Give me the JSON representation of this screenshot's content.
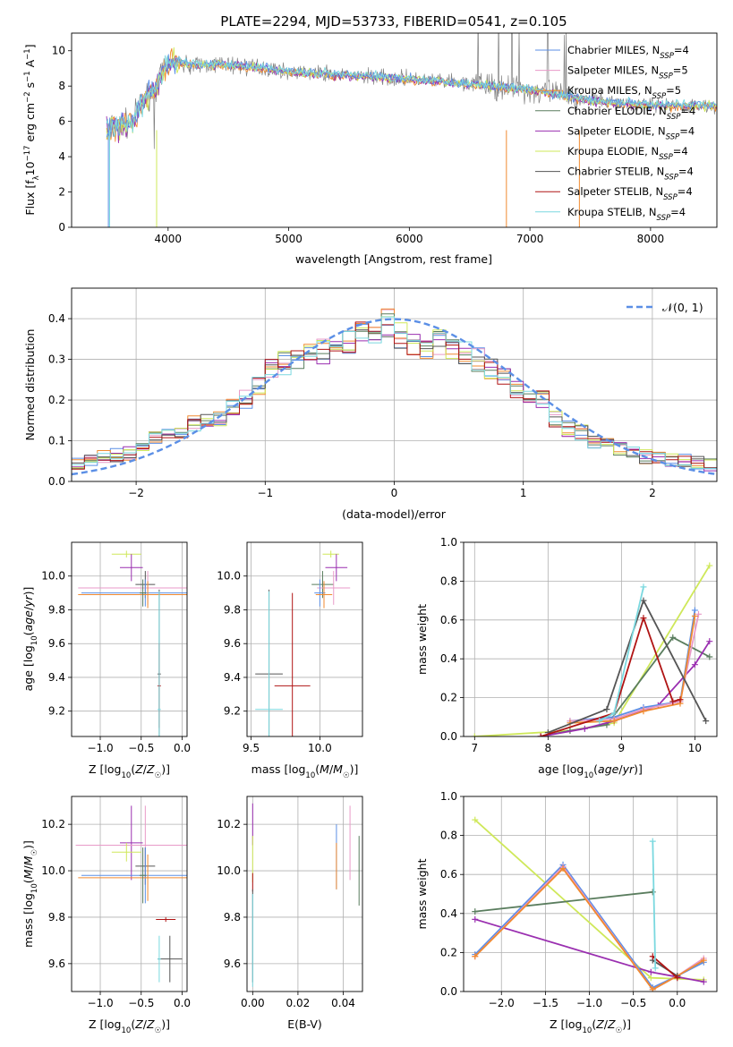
{
  "figure_title": "PLATE=2294, MJD=53733, FIBERID=0541, z=0.105",
  "colors": {
    "chabrier_miles": "#5b8fe6",
    "salpeter_miles": "#e89ac8",
    "kroupa_miles": "#f08a30",
    "chabrier_elodie": "#5a7d5e",
    "salpeter_elodie": "#9a2fb0",
    "kroupa_elodie": "#cfe85a",
    "chabrier_stelib": "#555555",
    "salpeter_stelib": "#b01414",
    "kroupa_stelib": "#7ad8df",
    "normal": "#5b8fe6"
  },
  "chart_data": [
    {
      "id": "spectrum",
      "type": "line",
      "title": "PLATE=2294, MJD=53733, FIBERID=0541, z=0.105",
      "xlabel": "wavelength [Angstrom, rest frame]",
      "ylabel": "Flux [f_λ 10^-17 erg cm^-2 s^-1 A^-1]",
      "xlim": [
        3200,
        8550
      ],
      "ylim": [
        0,
        11
      ],
      "xticks": [
        4000,
        5000,
        6000,
        7000,
        8000
      ],
      "yticks": [
        0,
        2,
        4,
        6,
        8,
        10
      ],
      "legend_position": "upper-right",
      "legend": [
        {
          "label": "Chabrier MILES, N",
          "sub": "SSP",
          "eq": "=4",
          "color": "chabrier_miles"
        },
        {
          "label": "Salpeter MILES, N",
          "sub": "SSP",
          "eq": "=5",
          "color": "salpeter_miles"
        },
        {
          "label": "Kroupa MILES, N",
          "sub": "SSP",
          "eq": "=5",
          "color": "kroupa_miles"
        },
        {
          "label": "Chabrier ELODIE, N",
          "sub": "SSP",
          "eq": "=4",
          "color": "chabrier_elodie"
        },
        {
          "label": "Salpeter ELODIE, N",
          "sub": "SSP",
          "eq": "=4",
          "color": "salpeter_elodie"
        },
        {
          "label": "Kroupa ELODIE, N",
          "sub": "SSP",
          "eq": "=4",
          "color": "kroupa_elodie"
        },
        {
          "label": "Chabrier STELIB, N",
          "sub": "SSP",
          "eq": "=4",
          "color": "chabrier_stelib"
        },
        {
          "label": "Salpeter STELIB, N",
          "sub": "SSP",
          "eq": "=4",
          "color": "salpeter_stelib"
        },
        {
          "label": "Kroupa STELIB, N",
          "sub": "SSP",
          "eq": "=4",
          "color": "kroupa_stelib"
        }
      ],
      "continuum": {
        "wavelength": [
          3500,
          3700,
          3800,
          3900,
          4000,
          4200,
          4500,
          4800,
          5000,
          5500,
          6000,
          6500,
          7000,
          7500,
          8000,
          8500
        ],
        "flux": [
          5.6,
          6.0,
          7.2,
          8.0,
          9.4,
          9.2,
          9.2,
          9.0,
          8.8,
          8.6,
          8.4,
          8.1,
          7.8,
          7.2,
          6.9,
          6.9
        ]
      }
    },
    {
      "id": "residuals",
      "type": "step",
      "xlabel": "(data-model)/error",
      "ylabel": "Normed distribution",
      "xlim": [
        -2.5,
        2.5
      ],
      "ylim": [
        0,
        0.475
      ],
      "xticks": [
        -2,
        -1,
        0,
        1,
        2
      ],
      "yticks": [
        0.0,
        0.1,
        0.2,
        0.3,
        0.4
      ],
      "legend_position": "upper-right",
      "legend_label": "𝒩(0, 1)",
      "bin_width": 0.1,
      "bin_start": -2.5,
      "hist_mean": [
        0.04,
        0.05,
        0.06,
        0.065,
        0.07,
        0.075,
        0.11,
        0.115,
        0.12,
        0.14,
        0.15,
        0.16,
        0.18,
        0.2,
        0.23,
        0.28,
        0.29,
        0.3,
        0.31,
        0.32,
        0.33,
        0.34,
        0.36,
        0.37,
        0.39,
        0.36,
        0.34,
        0.33,
        0.34,
        0.33,
        0.32,
        0.3,
        0.28,
        0.25,
        0.23,
        0.21,
        0.2,
        0.15,
        0.13,
        0.12,
        0.1,
        0.09,
        0.08,
        0.075,
        0.06,
        0.055,
        0.055,
        0.05,
        0.045,
        0.04
      ],
      "normal": {
        "mean": 0,
        "sigma": 1
      }
    },
    {
      "id": "age_vs_Z",
      "type": "errorbar",
      "xlabel": "Z [log10(Z/Z☉)]",
      "ylabel": "age [log10(age/yr)]",
      "xlim": [
        -1.35,
        0.06
      ],
      "ylim": [
        9.05,
        10.2
      ],
      "xticks": [
        -1.0,
        -0.5,
        0.0
      ],
      "yticks": [
        9.2,
        9.4,
        9.6,
        9.8,
        10.0
      ],
      "points": [
        {
          "s": "kroupa_elodie",
          "x": -0.68,
          "xerr": 0.18,
          "y": 10.13,
          "yerr": 0.02
        },
        {
          "s": "salpeter_elodie",
          "x": -0.62,
          "xerr": 0.14,
          "y": 10.05,
          "yerr": 0.08
        },
        {
          "s": "chabrier_stelib",
          "x": -0.45,
          "xerr": 0.12,
          "y": 9.95,
          "yerr": 0.08
        },
        {
          "s": "salpeter_miles",
          "x": -0.42,
          "xerr": 0.85,
          "y": 9.93,
          "yerr": 0.1
        },
        {
          "s": "chabrier_miles",
          "x": -0.45,
          "xerr": 0.78,
          "y": 9.9,
          "yerr": 0.08
        },
        {
          "s": "kroupa_miles",
          "x": -0.42,
          "xerr": 0.85,
          "y": 9.89,
          "yerr": 0.08
        },
        {
          "s": "chabrier_elodie",
          "x": -0.48,
          "xerr": 0.04,
          "y": 9.9,
          "yerr": 0.08
        },
        {
          "s": "chabrier_stelib",
          "x": -0.28,
          "xerr": 0.02,
          "y": 9.42,
          "yerr": 0.5
        },
        {
          "s": "salpeter_stelib",
          "x": -0.28,
          "xerr": 0.02,
          "y": 9.35,
          "yerr": 0.25
        },
        {
          "s": "kroupa_stelib",
          "x": -0.28,
          "xerr": 0.02,
          "y": 9.21,
          "yerr": 0.7
        }
      ]
    },
    {
      "id": "age_vs_mass",
      "type": "errorbar",
      "xlabel": "mass [log10(M/M☉)]",
      "ylabel": "",
      "xlim": [
        9.47,
        10.31
      ],
      "ylim": [
        9.05,
        10.2
      ],
      "xticks": [
        9.5,
        10.0
      ],
      "yticks": [
        9.2,
        9.4,
        9.6,
        9.8,
        10.0
      ],
      "points": [
        {
          "s": "kroupa_elodie",
          "x": 10.08,
          "xerr": 0.06,
          "y": 10.13,
          "yerr": 0.02
        },
        {
          "s": "salpeter_elodie",
          "x": 10.12,
          "xerr": 0.08,
          "y": 10.05,
          "yerr": 0.08
        },
        {
          "s": "chabrier_elodie",
          "x": 10.02,
          "xerr": 0.08,
          "y": 9.95,
          "yerr": 0.08
        },
        {
          "s": "salpeter_miles",
          "x": 10.1,
          "xerr": 0.12,
          "y": 9.93,
          "yerr": 0.1
        },
        {
          "s": "chabrier_miles",
          "x": 10.0,
          "xerr": 0.04,
          "y": 9.9,
          "yerr": 0.08
        },
        {
          "s": "kroupa_miles",
          "x": 10.03,
          "xerr": 0.06,
          "y": 9.89,
          "yerr": 0.08
        },
        {
          "s": "chabrier_stelib",
          "x": 9.63,
          "xerr": 0.1,
          "y": 9.42,
          "yerr": 0.5
        },
        {
          "s": "salpeter_stelib",
          "x": 9.8,
          "xerr": 0.13,
          "y": 9.35,
          "yerr": 0.55
        },
        {
          "s": "kroupa_stelib",
          "x": 9.63,
          "xerr": 0.1,
          "y": 9.21,
          "yerr": 0.7
        }
      ]
    },
    {
      "id": "mass_weight_vs_age",
      "type": "line",
      "xlabel": "age [log10(age/yr)]",
      "ylabel": "mass weight",
      "xlim": [
        6.85,
        10.3
      ],
      "ylim": [
        0,
        1
      ],
      "xticks": [
        7,
        8,
        9,
        10
      ],
      "yticks": [
        0.0,
        0.2,
        0.4,
        0.6,
        0.8,
        1.0
      ],
      "series": [
        {
          "s": "kroupa_elodie",
          "x": [
            7.0,
            8.3,
            8.9,
            10.2
          ],
          "y": [
            0.0,
            0.03,
            0.07,
            0.88
          ]
        },
        {
          "s": "chabrier_elodie",
          "x": [
            7.9,
            8.3,
            8.8,
            9.7,
            10.2
          ],
          "y": [
            0.0,
            0.03,
            0.06,
            0.51,
            0.41
          ]
        },
        {
          "s": "salpeter_elodie",
          "x": [
            7.9,
            8.5,
            8.9,
            9.5,
            10.0,
            10.2
          ],
          "y": [
            0.0,
            0.04,
            0.08,
            0.16,
            0.37,
            0.49
          ]
        },
        {
          "s": "chabrier_miles",
          "x": [
            8.3,
            8.9,
            9.3,
            9.8,
            10.0
          ],
          "y": [
            0.08,
            0.1,
            0.15,
            0.18,
            0.65
          ]
        },
        {
          "s": "salpeter_miles",
          "x": [
            8.3,
            8.9,
            9.3,
            9.8,
            10.05
          ],
          "y": [
            0.08,
            0.09,
            0.14,
            0.18,
            0.63
          ]
        },
        {
          "s": "kroupa_miles",
          "x": [
            8.3,
            8.9,
            9.3,
            9.8,
            10.0
          ],
          "y": [
            0.07,
            0.08,
            0.13,
            0.17,
            0.62
          ]
        },
        {
          "s": "chabrier_stelib",
          "x": [
            8.0,
            8.8,
            9.3,
            10.15
          ],
          "y": [
            0.02,
            0.14,
            0.7,
            0.08
          ]
        },
        {
          "s": "salpeter_stelib",
          "x": [
            7.9,
            8.9,
            9.3,
            9.7,
            9.8
          ],
          "y": [
            0.0,
            0.12,
            0.61,
            0.18,
            0.19
          ]
        },
        {
          "s": "kroupa_stelib",
          "x": [
            8.7,
            8.9,
            9.3
          ],
          "y": [
            0.08,
            0.12,
            0.77
          ]
        }
      ]
    },
    {
      "id": "mass_vs_Z",
      "type": "errorbar",
      "xlabel": "Z [log10(Z/Z☉)]",
      "ylabel": "mass [log10(M/M☉)]",
      "xlim": [
        -1.35,
        0.06
      ],
      "ylim": [
        9.48,
        10.32
      ],
      "xticks": [
        -1.0,
        -0.5,
        0.0
      ],
      "yticks": [
        9.6,
        9.8,
        10.0,
        10.2
      ],
      "points": [
        {
          "s": "salpeter_elodie",
          "x": -0.62,
          "xerr": 0.14,
          "y": 10.12,
          "yerr": 0.16
        },
        {
          "s": "salpeter_miles",
          "x": -0.45,
          "xerr": 0.85,
          "y": 10.11,
          "yerr": 0.17
        },
        {
          "s": "kroupa_elodie",
          "x": -0.68,
          "xerr": 0.18,
          "y": 10.08,
          "yerr": 0.04
        },
        {
          "s": "chabrier_stelib",
          "x": -0.45,
          "xerr": 0.12,
          "y": 10.02,
          "yerr": 0.08
        },
        {
          "s": "chabrier_miles",
          "x": -0.45,
          "xerr": 0.78,
          "y": 9.98,
          "yerr": 0.12
        },
        {
          "s": "kroupa_miles",
          "x": -0.42,
          "xerr": 0.85,
          "y": 9.97,
          "yerr": 0.1
        },
        {
          "s": "chabrier_elodie",
          "x": -0.48,
          "xerr": 0.04,
          "y": 9.98,
          "yerr": 0.12
        },
        {
          "s": "salpeter_stelib",
          "x": -0.2,
          "xerr": 0.12,
          "y": 9.79,
          "yerr": 0.01
        },
        {
          "s": "chabrier_stelib",
          "x": -0.15,
          "xerr": 0.15,
          "y": 9.62,
          "yerr": 0.1
        },
        {
          "s": "kroupa_stelib",
          "x": -0.28,
          "xerr": 0.02,
          "y": 9.62,
          "yerr": 0.1
        }
      ]
    },
    {
      "id": "mass_vs_ebv",
      "type": "errorbar",
      "xlabel": "E(B-V)",
      "ylabel": "",
      "xlim": [
        -0.0025,
        0.0485
      ],
      "ylim": [
        9.48,
        10.32
      ],
      "xticks": [
        0.0,
        0.02,
        0.04
      ],
      "yticks": [
        9.6,
        9.8,
        10.0,
        10.2
      ],
      "points": [
        {
          "s": "salpeter_elodie",
          "x": 0.0,
          "xerr": 0,
          "y": 10.2,
          "yerr": 0.09
        },
        {
          "s": "kroupa_elodie",
          "x": 0.0,
          "xerr": 0,
          "y": 10.05,
          "yerr": 0.1
        },
        {
          "s": "salpeter_stelib",
          "x": 0.0,
          "xerr": 0,
          "y": 9.95,
          "yerr": 0.04
        },
        {
          "s": "chabrier_stelib",
          "x": 0.0,
          "xerr": 0,
          "y": 9.72,
          "yerr": 0.2
        },
        {
          "s": "kroupa_stelib",
          "x": 0.0,
          "xerr": 0,
          "y": 9.7,
          "yerr": 0.2
        },
        {
          "s": "chabrier_miles",
          "x": 0.037,
          "xerr": 0,
          "y": 10.06,
          "yerr": 0.14
        },
        {
          "s": "kroupa_miles",
          "x": 0.037,
          "xerr": 0,
          "y": 10.02,
          "yerr": 0.1
        },
        {
          "s": "salpeter_miles",
          "x": 0.043,
          "xerr": 0,
          "y": 10.12,
          "yerr": 0.16
        },
        {
          "s": "chabrier_elodie",
          "x": 0.047,
          "xerr": 0,
          "y": 10.0,
          "yerr": 0.15
        }
      ]
    },
    {
      "id": "mass_weight_vs_Z",
      "type": "line",
      "xlabel": "Z [log10(Z/Z☉)]",
      "ylabel": "mass weight",
      "xlim": [
        -2.43,
        0.45
      ],
      "ylim": [
        0,
        1
      ],
      "xticks": [
        -2.0,
        -1.5,
        -1.0,
        -0.5,
        0.0
      ],
      "yticks": [
        0.0,
        0.2,
        0.4,
        0.6,
        0.8,
        1.0
      ],
      "series": [
        {
          "s": "kroupa_elodie",
          "x": [
            -2.3,
            -0.3,
            0.3
          ],
          "y": [
            0.88,
            0.07,
            0.06
          ]
        },
        {
          "s": "chabrier_elodie",
          "x": [
            -2.3,
            -0.28
          ],
          "y": [
            0.41,
            0.51
          ]
        },
        {
          "s": "salpeter_elodie",
          "x": [
            -2.3,
            -0.3,
            0.3
          ],
          "y": [
            0.37,
            0.1,
            0.05
          ]
        },
        {
          "s": "chabrier_miles",
          "x": [
            -2.3,
            -1.3,
            -0.28,
            0.0,
            0.3
          ],
          "y": [
            0.19,
            0.65,
            0.02,
            0.08,
            0.15
          ]
        },
        {
          "s": "salpeter_miles",
          "x": [
            -2.3,
            -1.3,
            -0.28,
            0.0,
            0.3
          ],
          "y": [
            0.18,
            0.64,
            0.01,
            0.08,
            0.17
          ]
        },
        {
          "s": "kroupa_miles",
          "x": [
            -2.3,
            -1.3,
            -0.28,
            0.0,
            0.3
          ],
          "y": [
            0.18,
            0.63,
            0.01,
            0.08,
            0.16
          ]
        },
        {
          "s": "chabrier_stelib",
          "x": [
            -0.28,
            0.0
          ],
          "y": [
            0.16,
            0.08
          ]
        },
        {
          "s": "salpeter_stelib",
          "x": [
            -0.28,
            0.0
          ],
          "y": [
            0.18,
            0.07
          ]
        },
        {
          "s": "kroupa_stelib",
          "x": [
            -0.28,
            -0.25
          ],
          "y": [
            0.77,
            0.12
          ]
        }
      ]
    }
  ]
}
